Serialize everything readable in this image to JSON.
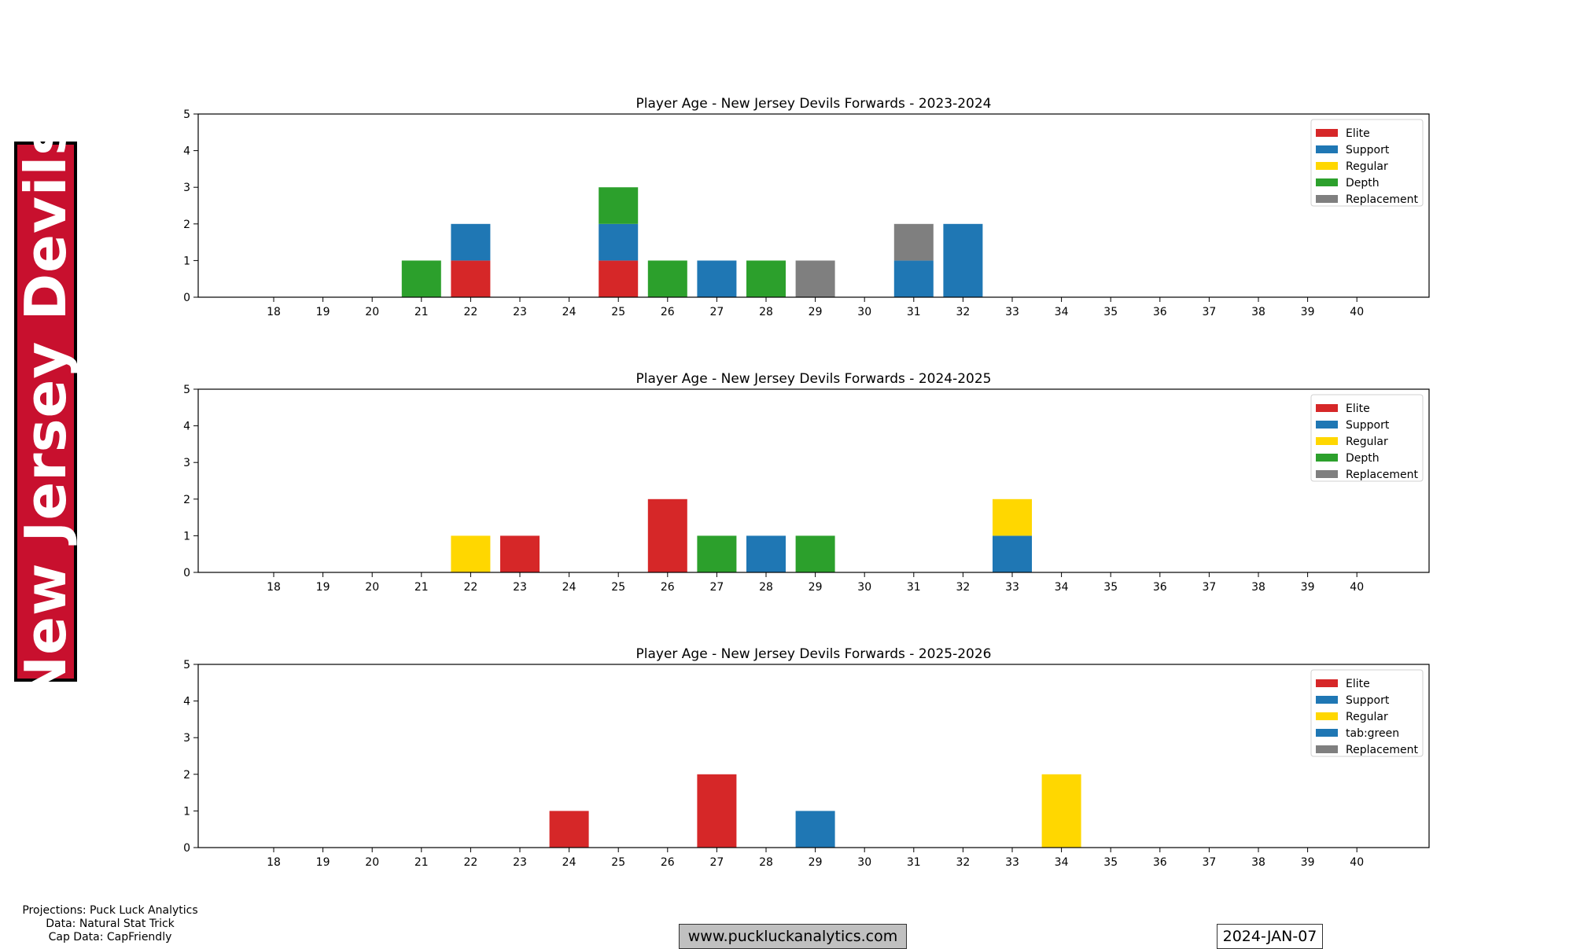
{
  "banner": {
    "team_name": "New Jersey Devils",
    "color": "#c8102e"
  },
  "credits": {
    "projections": "Projections: Puck Luck Analytics",
    "data": "Data: Natural Stat Trick",
    "cap": "Cap Data: CapFriendly"
  },
  "footer": {
    "website": "www.puckluckanalytics.com",
    "date": "2024-JAN-07"
  },
  "colors": {
    "Elite": "#d62728",
    "Support": "#1f77b4",
    "Regular": "#ffd700",
    "Depth": "#2ca02c",
    "Replacement": "#7f7f7f"
  },
  "chart_data": [
    {
      "type": "bar",
      "stacked": true,
      "title": "Player Age - New Jersey Devils Forwards - 2023-2024",
      "categories": [
        18,
        19,
        20,
        21,
        22,
        23,
        24,
        25,
        26,
        27,
        28,
        29,
        30,
        31,
        32,
        33,
        34,
        35,
        36,
        37,
        38,
        39,
        40
      ],
      "ylim": [
        0,
        5
      ],
      "yticks": [
        0,
        1,
        2,
        3,
        4,
        5
      ],
      "legend_position": "upper-right",
      "series": [
        {
          "name": "Elite",
          "color": "#d62728",
          "values": [
            0,
            0,
            0,
            0,
            1,
            0,
            0,
            1,
            0,
            0,
            0,
            0,
            0,
            0,
            0,
            0,
            0,
            0,
            0,
            0,
            0,
            0,
            0
          ]
        },
        {
          "name": "Support",
          "color": "#1f77b4",
          "values": [
            0,
            0,
            0,
            0,
            1,
            0,
            0,
            1,
            0,
            1,
            0,
            0,
            0,
            1,
            2,
            0,
            0,
            0,
            0,
            0,
            0,
            0,
            0
          ]
        },
        {
          "name": "Regular",
          "color": "#ffd700",
          "values": [
            0,
            0,
            0,
            0,
            0,
            0,
            0,
            0,
            0,
            0,
            0,
            0,
            0,
            0,
            0,
            0,
            0,
            0,
            0,
            0,
            0,
            0,
            0
          ]
        },
        {
          "name": "Depth",
          "color": "#2ca02c",
          "values": [
            0,
            0,
            0,
            1,
            0,
            0,
            0,
            1,
            1,
            0,
            1,
            0,
            0,
            0,
            0,
            0,
            0,
            0,
            0,
            0,
            0,
            0,
            0
          ]
        },
        {
          "name": "Replacement",
          "color": "#7f7f7f",
          "values": [
            0,
            0,
            0,
            0,
            0,
            0,
            0,
            0,
            0,
            0,
            0,
            1,
            0,
            1,
            0,
            0,
            0,
            0,
            0,
            0,
            0,
            0,
            0
          ]
        }
      ]
    },
    {
      "type": "bar",
      "stacked": true,
      "title": "Player Age - New Jersey Devils Forwards - 2024-2025",
      "categories": [
        18,
        19,
        20,
        21,
        22,
        23,
        24,
        25,
        26,
        27,
        28,
        29,
        30,
        31,
        32,
        33,
        34,
        35,
        36,
        37,
        38,
        39,
        40
      ],
      "ylim": [
        0,
        5
      ],
      "yticks": [
        0,
        1,
        2,
        3,
        4,
        5
      ],
      "legend_position": "upper-right",
      "series": [
        {
          "name": "Elite",
          "color": "#d62728",
          "values": [
            0,
            0,
            0,
            0,
            0,
            1,
            0,
            0,
            2,
            0,
            0,
            0,
            0,
            0,
            0,
            0,
            0,
            0,
            0,
            0,
            0,
            0,
            0
          ]
        },
        {
          "name": "Support",
          "color": "#1f77b4",
          "values": [
            0,
            0,
            0,
            0,
            0,
            0,
            0,
            0,
            0,
            0,
            1,
            0,
            0,
            0,
            0,
            1,
            0,
            0,
            0,
            0,
            0,
            0,
            0
          ]
        },
        {
          "name": "Regular",
          "color": "#ffd700",
          "values": [
            0,
            0,
            0,
            0,
            1,
            0,
            0,
            0,
            0,
            0,
            0,
            0,
            0,
            0,
            0,
            1,
            0,
            0,
            0,
            0,
            0,
            0,
            0
          ]
        },
        {
          "name": "Depth",
          "color": "#2ca02c",
          "values": [
            0,
            0,
            0,
            0,
            0,
            0,
            0,
            0,
            0,
            1,
            0,
            1,
            0,
            0,
            0,
            0,
            0,
            0,
            0,
            0,
            0,
            0,
            0
          ]
        },
        {
          "name": "Replacement",
          "color": "#7f7f7f",
          "values": [
            0,
            0,
            0,
            0,
            0,
            0,
            0,
            0,
            0,
            0,
            0,
            0,
            0,
            0,
            0,
            0,
            0,
            0,
            0,
            0,
            0,
            0,
            0
          ]
        }
      ]
    },
    {
      "type": "bar",
      "stacked": true,
      "title": "Player Age - New Jersey Devils Forwards - 2025-2026",
      "categories": [
        18,
        19,
        20,
        21,
        22,
        23,
        24,
        25,
        26,
        27,
        28,
        29,
        30,
        31,
        32,
        33,
        34,
        35,
        36,
        37,
        38,
        39,
        40
      ],
      "ylim": [
        0,
        5
      ],
      "yticks": [
        0,
        1,
        2,
        3,
        4,
        5
      ],
      "legend_position": "upper-right",
      "series": [
        {
          "name": "Elite",
          "color": "#d62728",
          "values": [
            0,
            0,
            0,
            0,
            0,
            0,
            1,
            0,
            0,
            2,
            0,
            0,
            0,
            0,
            0,
            0,
            0,
            0,
            0,
            0,
            0,
            0,
            0
          ]
        },
        {
          "name": "Support",
          "color": "#1f77b4",
          "values": [
            0,
            0,
            0,
            0,
            0,
            0,
            0,
            0,
            0,
            0,
            0,
            0,
            0,
            0,
            0,
            0,
            0,
            0,
            0,
            0,
            0,
            0,
            0
          ]
        },
        {
          "name": "Regular",
          "color": "#ffd700",
          "values": [
            0,
            0,
            0,
            0,
            0,
            0,
            0,
            0,
            0,
            0,
            0,
            0,
            0,
            0,
            0,
            0,
            2,
            0,
            0,
            0,
            0,
            0,
            0
          ]
        },
        {
          "name": "tab:green",
          "color": "#1f77b4",
          "values": [
            0,
            0,
            0,
            0,
            0,
            0,
            0,
            0,
            0,
            0,
            0,
            1,
            0,
            0,
            0,
            0,
            0,
            0,
            0,
            0,
            0,
            0,
            0
          ]
        },
        {
          "name": "Replacement",
          "color": "#7f7f7f",
          "values": [
            0,
            0,
            0,
            0,
            0,
            0,
            0,
            0,
            0,
            0,
            0,
            0,
            0,
            0,
            0,
            0,
            0,
            0,
            0,
            0,
            0,
            0,
            0
          ]
        }
      ]
    }
  ]
}
